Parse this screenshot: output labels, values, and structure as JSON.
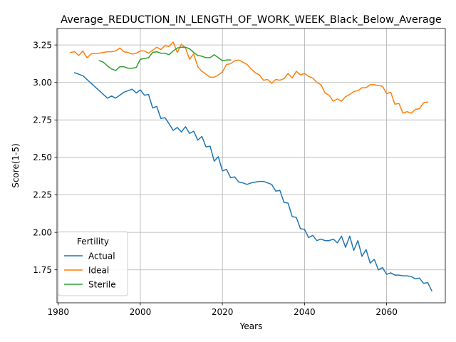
{
  "chart_data": {
    "type": "line",
    "title": "Average_REDUCTION_IN_LENGTH_OF_WORK_WEEK_Black_Below_Average",
    "xlabel": "Years",
    "ylabel": "Score(1-5)",
    "xlim": [
      1979.7,
      2074.3
    ],
    "ylim": [
      1.53,
      3.36
    ],
    "x_ticks": [
      1980,
      2000,
      2020,
      2040,
      2060
    ],
    "y_ticks": [
      1.75,
      2.0,
      2.25,
      2.5,
      2.75,
      3.0,
      3.25
    ],
    "grid": true,
    "legend": {
      "title": "Fertility",
      "placement": "lower-left"
    },
    "series": [
      {
        "name": "Actual",
        "color": "#1f77b4",
        "points": [
          [
            1984,
            3.065
          ],
          [
            1985,
            3.055
          ],
          [
            1986,
            3.045
          ],
          [
            1987,
            3.02
          ],
          [
            1988,
            2.995
          ],
          [
            1989,
            2.97
          ],
          [
            1990,
            2.945
          ],
          [
            1991,
            2.92
          ],
          [
            1992,
            2.895
          ],
          [
            1993,
            2.91
          ],
          [
            1994,
            2.895
          ],
          [
            1995,
            2.915
          ],
          [
            1996,
            2.935
          ],
          [
            1997,
            2.945
          ],
          [
            1998,
            2.955
          ],
          [
            1999,
            2.93
          ],
          [
            2000,
            2.95
          ],
          [
            2001,
            2.915
          ],
          [
            2002,
            2.92
          ],
          [
            2003,
            2.83
          ],
          [
            2004,
            2.84
          ],
          [
            2005,
            2.76
          ],
          [
            2006,
            2.765
          ],
          [
            2007,
            2.725
          ],
          [
            2008,
            2.68
          ],
          [
            2009,
            2.7
          ],
          [
            2010,
            2.67
          ],
          [
            2011,
            2.705
          ],
          [
            2012,
            2.66
          ],
          [
            2013,
            2.675
          ],
          [
            2014,
            2.615
          ],
          [
            2015,
            2.64
          ],
          [
            2016,
            2.57
          ],
          [
            2017,
            2.575
          ],
          [
            2018,
            2.475
          ],
          [
            2019,
            2.505
          ],
          [
            2020,
            2.41
          ],
          [
            2021,
            2.42
          ],
          [
            2022,
            2.365
          ],
          [
            2023,
            2.37
          ],
          [
            2024,
            2.335
          ],
          [
            2025,
            2.33
          ],
          [
            2026,
            2.32
          ],
          [
            2027,
            2.33
          ],
          [
            2028,
            2.335
          ],
          [
            2029,
            2.34
          ],
          [
            2030,
            2.34
          ],
          [
            2031,
            2.33
          ],
          [
            2032,
            2.32
          ],
          [
            2033,
            2.275
          ],
          [
            2034,
            2.28
          ],
          [
            2035,
            2.2
          ],
          [
            2036,
            2.195
          ],
          [
            2037,
            2.105
          ],
          [
            2038,
            2.1
          ],
          [
            2039,
            2.025
          ],
          [
            2040,
            2.02
          ],
          [
            2041,
            1.965
          ],
          [
            2042,
            1.98
          ],
          [
            2043,
            1.945
          ],
          [
            2044,
            1.955
          ],
          [
            2045,
            1.945
          ],
          [
            2046,
            1.945
          ],
          [
            2047,
            1.955
          ],
          [
            2048,
            1.93
          ],
          [
            2049,
            1.975
          ],
          [
            2050,
            1.9
          ],
          [
            2051,
            1.975
          ],
          [
            2052,
            1.88
          ],
          [
            2053,
            1.945
          ],
          [
            2054,
            1.84
          ],
          [
            2055,
            1.885
          ],
          [
            2056,
            1.795
          ],
          [
            2057,
            1.82
          ],
          [
            2058,
            1.75
          ],
          [
            2059,
            1.765
          ],
          [
            2060,
            1.72
          ],
          [
            2061,
            1.73
          ],
          [
            2062,
            1.715
          ],
          [
            2063,
            1.715
          ],
          [
            2064,
            1.71
          ],
          [
            2065,
            1.71
          ],
          [
            2066,
            1.705
          ],
          [
            2067,
            1.69
          ],
          [
            2068,
            1.695
          ],
          [
            2069,
            1.66
          ],
          [
            2070,
            1.665
          ],
          [
            2071,
            1.61
          ]
        ]
      },
      {
        "name": "Ideal",
        "color": "#ff7f0e",
        "points": [
          [
            1983,
            3.2
          ],
          [
            1984,
            3.205
          ],
          [
            1985,
            3.18
          ],
          [
            1986,
            3.21
          ],
          [
            1987,
            3.165
          ],
          [
            1988,
            3.19
          ],
          [
            1989,
            3.195
          ],
          [
            1990,
            3.195
          ],
          [
            1991,
            3.2
          ],
          [
            1992,
            3.205
          ],
          [
            1993,
            3.205
          ],
          [
            1994,
            3.21
          ],
          [
            1995,
            3.23
          ],
          [
            1996,
            3.205
          ],
          [
            1997,
            3.2
          ],
          [
            1998,
            3.19
          ],
          [
            1999,
            3.195
          ],
          [
            2000,
            3.21
          ],
          [
            2001,
            3.21
          ],
          [
            2002,
            3.195
          ],
          [
            2003,
            3.215
          ],
          [
            2004,
            3.235
          ],
          [
            2005,
            3.22
          ],
          [
            2006,
            3.245
          ],
          [
            2007,
            3.24
          ],
          [
            2008,
            3.27
          ],
          [
            2009,
            3.2
          ],
          [
            2010,
            3.255
          ],
          [
            2011,
            3.23
          ],
          [
            2012,
            3.155
          ],
          [
            2013,
            3.19
          ],
          [
            2014,
            3.105
          ],
          [
            2015,
            3.075
          ],
          [
            2016,
            3.055
          ],
          [
            2017,
            3.035
          ],
          [
            2018,
            3.035
          ],
          [
            2019,
            3.05
          ],
          [
            2020,
            3.07
          ],
          [
            2021,
            3.12
          ],
          [
            2022,
            3.125
          ],
          [
            2023,
            3.145
          ],
          [
            2024,
            3.15
          ],
          [
            2025,
            3.135
          ],
          [
            2026,
            3.12
          ],
          [
            2027,
            3.09
          ],
          [
            2028,
            3.065
          ],
          [
            2029,
            3.05
          ],
          [
            2030,
            3.015
          ],
          [
            2031,
            3.02
          ],
          [
            2032,
            2.995
          ],
          [
            2033,
            3.02
          ],
          [
            2034,
            3.015
          ],
          [
            2035,
            3.025
          ],
          [
            2036,
            3.06
          ],
          [
            2037,
            3.03
          ],
          [
            2038,
            3.075
          ],
          [
            2039,
            3.05
          ],
          [
            2040,
            3.06
          ],
          [
            2041,
            3.04
          ],
          [
            2042,
            3.03
          ],
          [
            2043,
            3.0
          ],
          [
            2044,
            2.985
          ],
          [
            2045,
            2.93
          ],
          [
            2046,
            2.915
          ],
          [
            2047,
            2.875
          ],
          [
            2048,
            2.89
          ],
          [
            2049,
            2.875
          ],
          [
            2050,
            2.905
          ],
          [
            2051,
            2.92
          ],
          [
            2052,
            2.94
          ],
          [
            2053,
            2.945
          ],
          [
            2054,
            2.965
          ],
          [
            2055,
            2.965
          ],
          [
            2056,
            2.985
          ],
          [
            2057,
            2.985
          ],
          [
            2058,
            2.98
          ],
          [
            2059,
            2.975
          ],
          [
            2060,
            2.925
          ],
          [
            2061,
            2.935
          ],
          [
            2062,
            2.855
          ],
          [
            2063,
            2.86
          ],
          [
            2064,
            2.795
          ],
          [
            2065,
            2.805
          ],
          [
            2066,
            2.795
          ],
          [
            2067,
            2.82
          ],
          [
            2068,
            2.825
          ],
          [
            2069,
            2.865
          ],
          [
            2070,
            2.87
          ]
        ]
      },
      {
        "name": "Sterile",
        "color": "#2ca02c",
        "points": [
          [
            1990,
            3.145
          ],
          [
            1991,
            3.135
          ],
          [
            1992,
            3.11
          ],
          [
            1993,
            3.09
          ],
          [
            1994,
            3.08
          ],
          [
            1995,
            3.105
          ],
          [
            1996,
            3.105
          ],
          [
            1997,
            3.095
          ],
          [
            1998,
            3.095
          ],
          [
            1999,
            3.1
          ],
          [
            2000,
            3.155
          ],
          [
            2001,
            3.16
          ],
          [
            2002,
            3.165
          ],
          [
            2003,
            3.2
          ],
          [
            2004,
            3.205
          ],
          [
            2005,
            3.195
          ],
          [
            2006,
            3.195
          ],
          [
            2007,
            3.185
          ],
          [
            2008,
            3.21
          ],
          [
            2009,
            3.23
          ],
          [
            2010,
            3.235
          ],
          [
            2011,
            3.235
          ],
          [
            2012,
            3.225
          ],
          [
            2013,
            3.2
          ],
          [
            2014,
            3.18
          ],
          [
            2015,
            3.175
          ],
          [
            2016,
            3.165
          ],
          [
            2017,
            3.165
          ],
          [
            2018,
            3.185
          ],
          [
            2019,
            3.165
          ],
          [
            2020,
            3.145
          ],
          [
            2021,
            3.15
          ],
          [
            2022,
            3.15
          ]
        ]
      }
    ]
  }
}
